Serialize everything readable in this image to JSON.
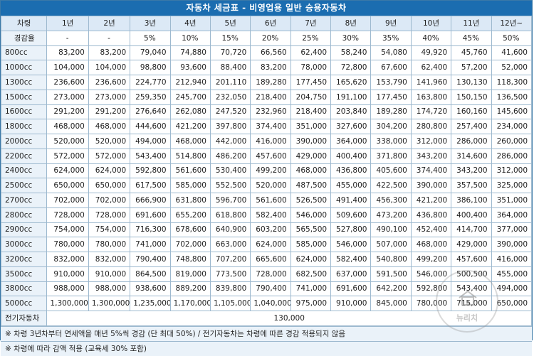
{
  "title": "자동차 세금표 - 비영업용 일반 승용자동차",
  "header": [
    "차령",
    "1년",
    "2년",
    "3년",
    "4년",
    "5년",
    "6년",
    "7년",
    "8년",
    "9년",
    "10년",
    "11년",
    "12년~"
  ],
  "rates": [
    "경감율",
    "-",
    "-",
    "5%",
    "10%",
    "15%",
    "20%",
    "25%",
    "30%",
    "35%",
    "40%",
    "45%",
    "50%"
  ],
  "rows": [
    [
      "800cc",
      "83,200",
      "83,200",
      "79,040",
      "74,880",
      "70,720",
      "66,560",
      "62,400",
      "58,240",
      "54,080",
      "49,920",
      "45,760",
      "41,600"
    ],
    [
      "1000cc",
      "104,000",
      "104,000",
      "98,800",
      "93,600",
      "88,400",
      "83,200",
      "78,000",
      "72,800",
      "67,600",
      "62,400",
      "57,200",
      "52,000"
    ],
    [
      "1300cc",
      "236,600",
      "236,600",
      "224,770",
      "212,940",
      "201,110",
      "189,280",
      "177,450",
      "165,620",
      "153,790",
      "141,960",
      "130,130",
      "118,300"
    ],
    [
      "1500cc",
      "273,000",
      "273,000",
      "259,350",
      "245,700",
      "232,050",
      "218,400",
      "204,750",
      "191,100",
      "177,450",
      "163,800",
      "150,150",
      "136,500"
    ],
    [
      "1600cc",
      "291,200",
      "291,200",
      "276,640",
      "262,080",
      "247,520",
      "232,960",
      "218,400",
      "203,840",
      "189,280",
      "174,720",
      "160,160",
      "145,600"
    ],
    [
      "1800cc",
      "468,000",
      "468,000",
      "444,600",
      "421,200",
      "397,800",
      "374,400",
      "351,000",
      "327,600",
      "304,200",
      "280,800",
      "257,400",
      "234,000"
    ],
    [
      "2000cc",
      "520,000",
      "520,000",
      "494,000",
      "468,000",
      "442,000",
      "416,000",
      "390,000",
      "364,000",
      "338,000",
      "312,000",
      "286,000",
      "260,000"
    ],
    [
      "2200cc",
      "572,000",
      "572,000",
      "543,400",
      "514,800",
      "486,200",
      "457,600",
      "429,000",
      "400,400",
      "371,800",
      "343,200",
      "314,600",
      "286,000"
    ],
    [
      "2400cc",
      "624,000",
      "624,000",
      "592,800",
      "561,600",
      "530,400",
      "499,200",
      "468,000",
      "436,800",
      "405,600",
      "374,400",
      "343,200",
      "312,000"
    ],
    [
      "2500cc",
      "650,000",
      "650,000",
      "617,500",
      "585,000",
      "552,500",
      "520,000",
      "487,500",
      "455,000",
      "422,500",
      "390,000",
      "357,500",
      "325,000"
    ],
    [
      "2700cc",
      "702,000",
      "702,000",
      "666,900",
      "631,800",
      "596,700",
      "561,600",
      "526,500",
      "491,400",
      "456,300",
      "421,200",
      "386,100",
      "351,000"
    ],
    [
      "2800cc",
      "728,000",
      "728,000",
      "691,600",
      "655,200",
      "618,800",
      "582,400",
      "546,000",
      "509,600",
      "473,200",
      "436,800",
      "400,400",
      "364,000"
    ],
    [
      "2900cc",
      "754,000",
      "754,000",
      "716,300",
      "678,600",
      "640,900",
      "603,200",
      "565,500",
      "527,800",
      "490,100",
      "452,400",
      "414,700",
      "377,000"
    ],
    [
      "3000cc",
      "780,000",
      "780,000",
      "741,000",
      "702,000",
      "663,000",
      "624,000",
      "585,000",
      "546,000",
      "507,000",
      "468,000",
      "429,000",
      "390,000"
    ],
    [
      "3200cc",
      "832,000",
      "832,000",
      "790,400",
      "748,800",
      "707,200",
      "665,600",
      "624,000",
      "582,400",
      "540,800",
      "499,200",
      "457,600",
      "416,000"
    ],
    [
      "3500cc",
      "910,000",
      "910,000",
      "864,500",
      "819,000",
      "773,500",
      "728,000",
      "682,500",
      "637,000",
      "591,500",
      "546,000",
      "500,500",
      "455,000"
    ],
    [
      "3800cc",
      "988,000",
      "988,000",
      "938,600",
      "889,200",
      "839,800",
      "790,400",
      "741,000",
      "691,600",
      "642,200",
      "592,800",
      "543,400",
      "494,000"
    ],
    [
      "5000cc",
      "1,300,000",
      "1,300,000",
      "1,235,000",
      "1,170,000",
      "1,105,000",
      "1,040,000",
      "975,000",
      "910,000",
      "845,000",
      "780,000",
      "715,000",
      "650,000"
    ]
  ],
  "electric": {
    "label": "전기자동차",
    "value": "130,000"
  },
  "notes": [
    "※ 차령 3년차부터 연세액을 매년 5%씩 경감 (단 최대 50%) / 전기자동차는 차령에 따른 경감 적용되지 않음",
    "※ 차령에 따라 감액 적용 (교육세 30% 포함)"
  ],
  "watermark": {
    "text": "뉴리치",
    "icon": "house-icon"
  }
}
